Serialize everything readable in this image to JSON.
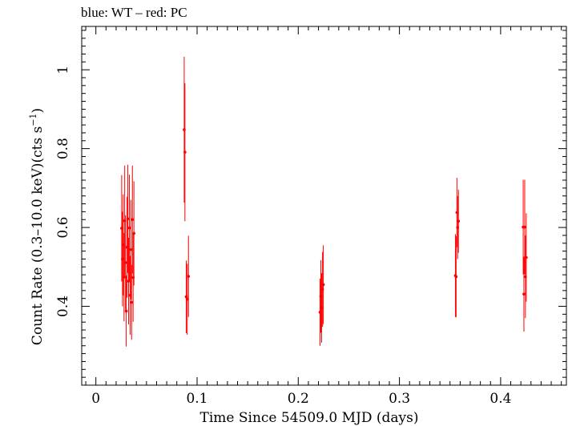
{
  "chart_data": {
    "type": "scatter",
    "title": "blue: WT – red: PC",
    "xlabel": "Time Since 54509.0 MJD (days)",
    "ylabel_parts": [
      "Count Rate (0.3–10.0 keV)(cts s",
      "−1",
      ")"
    ],
    "xlim": [
      -0.014,
      0.465
    ],
    "ylim": [
      0.2,
      1.11
    ],
    "x_ticks": [
      0,
      0.1,
      0.2,
      0.3,
      0.4
    ],
    "x_tick_labels": [
      "0",
      "0.1",
      "0.2",
      "0.3",
      "0.4"
    ],
    "y_ticks": [
      0.4,
      0.6,
      0.8,
      1.0
    ],
    "y_tick_labels": [
      "0.4",
      "0.6",
      "0.8",
      "1"
    ],
    "grid": false,
    "series": [
      {
        "color": "#ff0000",
        "points": [
          {
            "x": 0.0255,
            "y": 0.598,
            "err": 0.135
          },
          {
            "x": 0.0263,
            "y": 0.52,
            "err": 0.12
          },
          {
            "x": 0.027,
            "y": 0.556,
            "err": 0.128
          },
          {
            "x": 0.0278,
            "y": 0.474,
            "err": 0.112
          },
          {
            "x": 0.0285,
            "y": 0.617,
            "err": 0.14
          },
          {
            "x": 0.0293,
            "y": 0.511,
            "err": 0.12
          },
          {
            "x": 0.03,
            "y": 0.388,
            "err": 0.09
          },
          {
            "x": 0.0308,
            "y": 0.55,
            "err": 0.128
          },
          {
            "x": 0.0316,
            "y": 0.622,
            "err": 0.137
          },
          {
            "x": 0.0323,
            "y": 0.464,
            "err": 0.11
          },
          {
            "x": 0.0331,
            "y": 0.599,
            "err": 0.135
          },
          {
            "x": 0.0338,
            "y": 0.428,
            "err": 0.1
          },
          {
            "x": 0.0346,
            "y": 0.544,
            "err": 0.126
          },
          {
            "x": 0.0353,
            "y": 0.41,
            "err": 0.095
          },
          {
            "x": 0.0361,
            "y": 0.62,
            "err": 0.137
          },
          {
            "x": 0.0368,
            "y": 0.473,
            "err": 0.112
          },
          {
            "x": 0.0376,
            "y": 0.585,
            "err": 0.132
          },
          {
            "x": 0.0873,
            "y": 0.848,
            "err": 0.185
          },
          {
            "x": 0.088,
            "y": 0.791,
            "err": 0.175
          },
          {
            "x": 0.0893,
            "y": 0.424,
            "err": 0.092
          },
          {
            "x": 0.0903,
            "y": 0.418,
            "err": 0.09
          },
          {
            "x": 0.0915,
            "y": 0.476,
            "err": 0.103
          },
          {
            "x": 0.2215,
            "y": 0.385,
            "err": 0.085
          },
          {
            "x": 0.2223,
            "y": 0.425,
            "err": 0.092
          },
          {
            "x": 0.2231,
            "y": 0.396,
            "err": 0.088
          },
          {
            "x": 0.224,
            "y": 0.443,
            "err": 0.095
          },
          {
            "x": 0.2248,
            "y": 0.455,
            "err": 0.1
          },
          {
            "x": 0.3553,
            "y": 0.478,
            "err": 0.105
          },
          {
            "x": 0.356,
            "y": 0.475,
            "err": 0.103
          },
          {
            "x": 0.3568,
            "y": 0.638,
            "err": 0.088
          },
          {
            "x": 0.3575,
            "y": 0.6,
            "err": 0.08
          },
          {
            "x": 0.3583,
            "y": 0.616,
            "err": 0.08
          },
          {
            "x": 0.4223,
            "y": 0.601,
            "err": 0.12
          },
          {
            "x": 0.423,
            "y": 0.431,
            "err": 0.095
          },
          {
            "x": 0.4238,
            "y": 0.601,
            "err": 0.12
          },
          {
            "x": 0.4245,
            "y": 0.475,
            "err": 0.105
          },
          {
            "x": 0.4253,
            "y": 0.524,
            "err": 0.112
          }
        ]
      }
    ]
  }
}
